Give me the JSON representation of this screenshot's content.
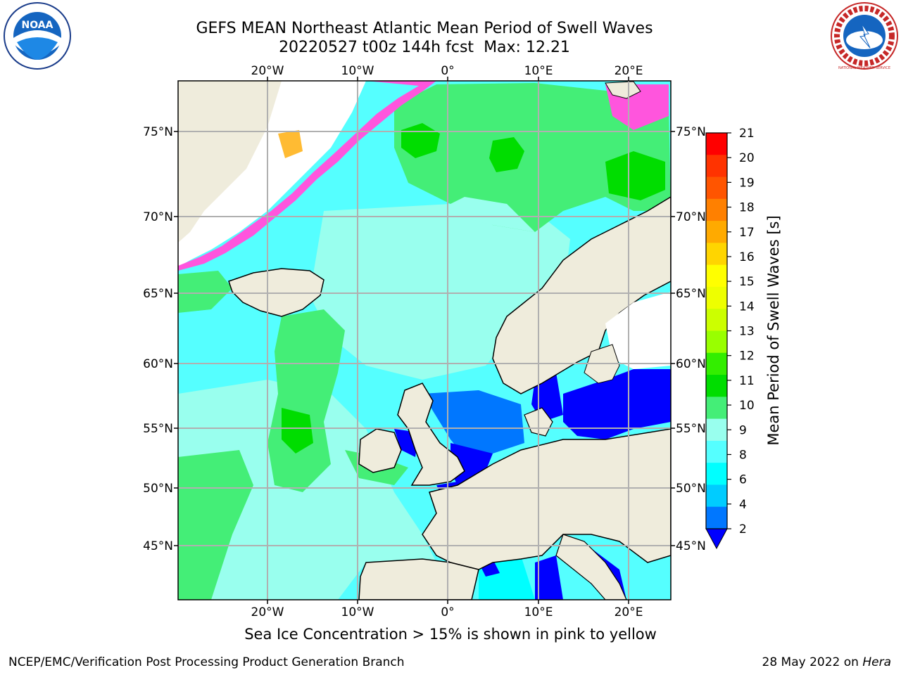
{
  "header": {
    "title_line1": "GEFS MEAN Northeast Atlantic Mean Period of Swell Waves",
    "title_date": "20220527 t00z 144h fcst",
    "title_max": "Max: 12.21"
  },
  "logos": {
    "left_name": "NOAA",
    "right_name": "NATIONAL WEATHER SERVICE"
  },
  "map": {
    "lon_labels": [
      "20°W",
      "10°W",
      "0°",
      "10°E",
      "20°E"
    ],
    "lat_labels_left": [
      "75°N",
      "70°N",
      "65°N",
      "60°N",
      "55°N",
      "50°N",
      "45°N"
    ],
    "lat_labels_right": [
      "75°N",
      "70°N",
      "65°N",
      "60°N",
      "55°N",
      "50°N",
      "45°N"
    ],
    "colors": {
      "land": "#efecdc",
      "sea_low": "#00ffff",
      "sea_mid": "#87fdfb",
      "sea_9_10": "#4cf17a",
      "sea_10_11": "#00e30c",
      "shallow_blue": "#0077ff",
      "deep_blue": "#0000ff",
      "ice_pink": "#ff55dd",
      "ice_orange": "#ffbb33",
      "ice_yellow": "#ffe066",
      "grid": "#b0b0b0"
    }
  },
  "colorbar": {
    "title": "Mean Period of Swell Waves [s]",
    "ticks": [
      "21",
      "20",
      "19",
      "18",
      "17",
      "16",
      "15",
      "14",
      "13",
      "12",
      "11",
      "10",
      "9",
      "8",
      "6",
      "4",
      "2"
    ],
    "colors": [
      "#ff0000",
      "#ff3300",
      "#ff5500",
      "#ff8000",
      "#ffaa00",
      "#ffd500",
      "#ffff00",
      "#eeff00",
      "#ccff00",
      "#99ff00",
      "#33ee00",
      "#00dd00",
      "#44ee77",
      "#99ffee",
      "#55ffff",
      "#00ffff",
      "#00ccff",
      "#0077ff"
    ],
    "extend_color": "#0000ff"
  },
  "footer": {
    "note": "Sea Ice Concentration > 15% is shown in pink to yellow",
    "left": "NCEP/EMC/Verification Post Processing Product Generation Branch",
    "right_date": "28 May 2022 on",
    "right_host": "Hera"
  }
}
